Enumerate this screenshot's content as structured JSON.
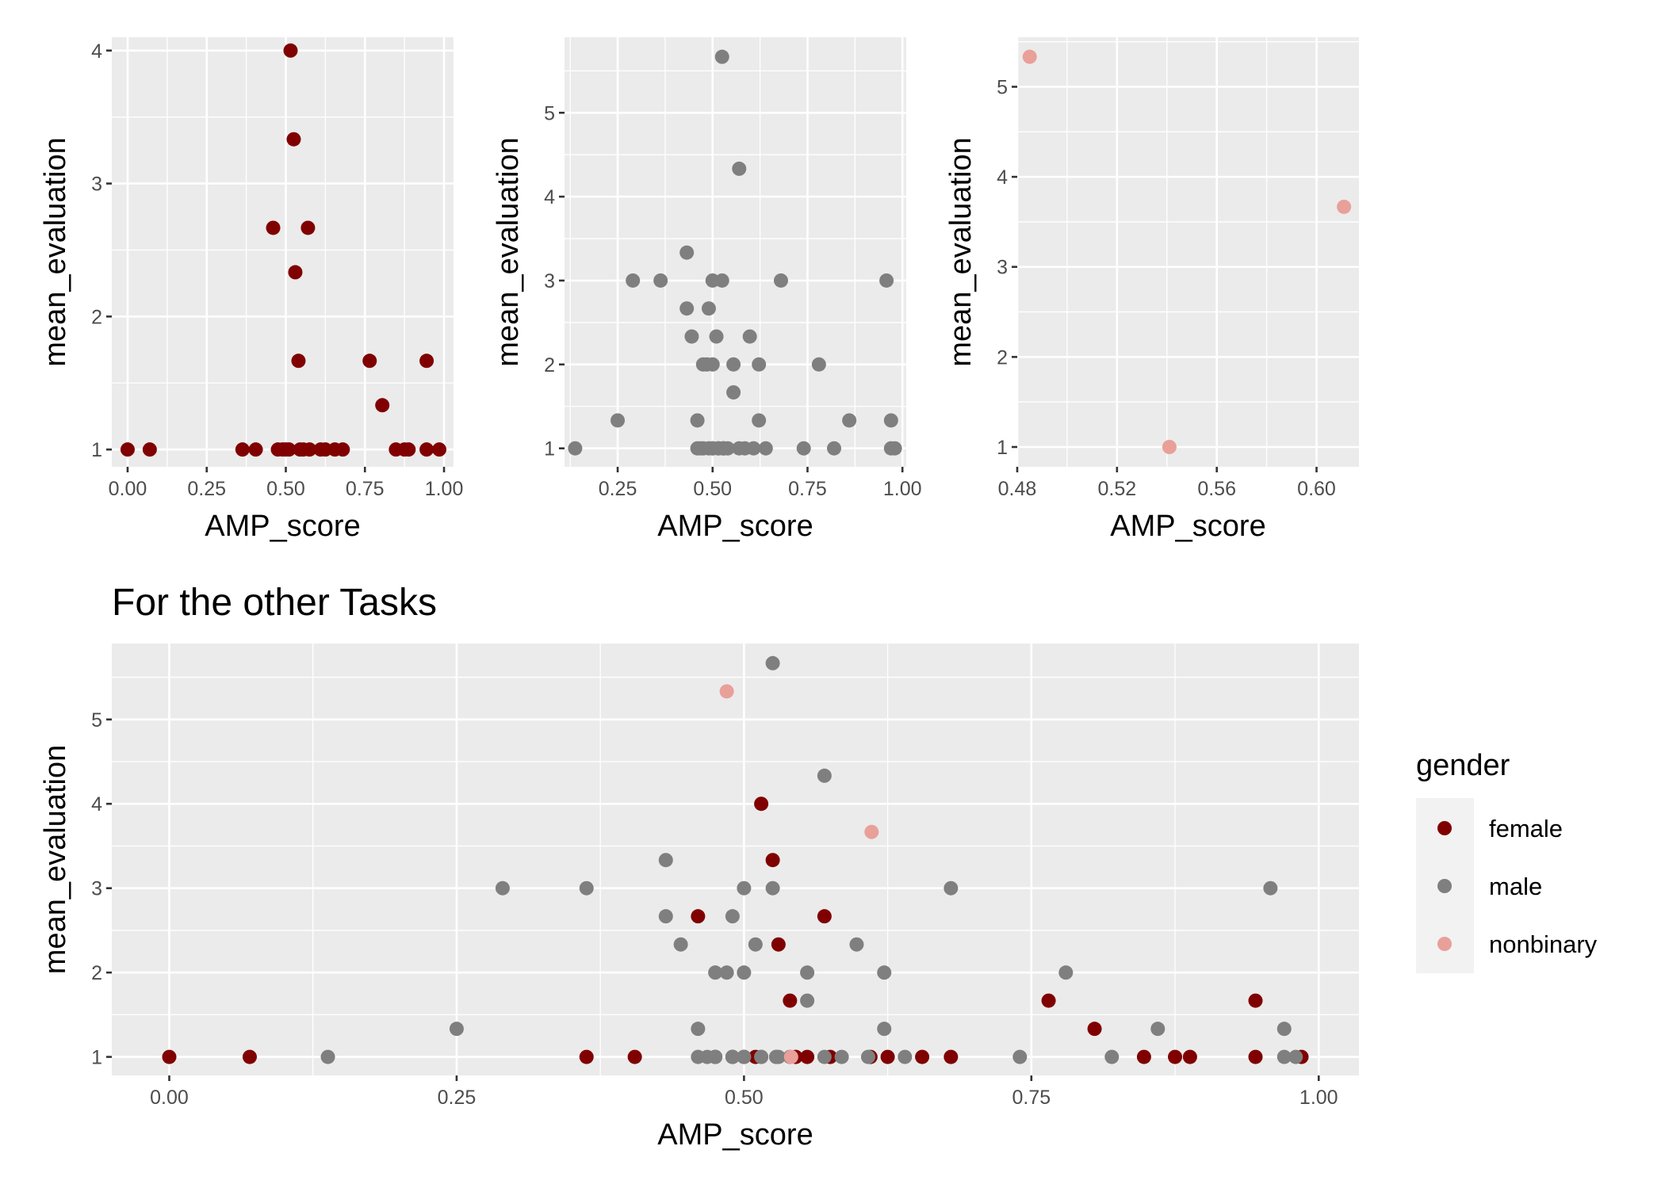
{
  "colors": {
    "panel_bg": "#EBEBEB",
    "grid": "#FFFFFF",
    "female": "#800000",
    "male": "#7F7F7F",
    "nonbinary": "#E8A099"
  },
  "legend": {
    "title": "gender",
    "items": [
      {
        "key": "female",
        "label": "female"
      },
      {
        "key": "male",
        "label": "male"
      },
      {
        "key": "nonbinary",
        "label": "nonbinary"
      }
    ]
  },
  "chart_data": [
    {
      "type": "scatter",
      "title": "",
      "xlabel": "AMP_score",
      "ylabel": "mean_evaluation",
      "xlim": [
        -0.05,
        1.03
      ],
      "ylim": [
        0.87,
        4.1
      ],
      "xticks": [
        0,
        0.25,
        0.5,
        0.75,
        1.0
      ],
      "xtick_labels": [
        "0.00",
        "0.25",
        "0.50",
        "0.75",
        "1.00"
      ],
      "yticks": [
        1,
        2,
        3,
        4
      ],
      "ytick_labels": [
        "1",
        "2",
        "3",
        "4"
      ],
      "grid": true,
      "series": [
        {
          "group": "female",
          "x": [
            0.0,
            0.07,
            0.363,
            0.405,
            0.46,
            0.475,
            0.49,
            0.5,
            0.51,
            0.515,
            0.525,
            0.53,
            0.54,
            0.545,
            0.555,
            0.57,
            0.575,
            0.61,
            0.625,
            0.655,
            0.68,
            0.765,
            0.805,
            0.848,
            0.875,
            0.888,
            0.945,
            0.945,
            0.985
          ],
          "y": [
            1,
            1,
            1,
            1,
            2.667,
            1,
            1,
            1,
            1,
            4,
            3.333,
            2.333,
            1.667,
            1,
            1,
            2.667,
            1,
            1,
            1,
            1,
            1,
            1.667,
            1.333,
            1,
            1,
            1,
            1.667,
            1,
            1
          ]
        }
      ]
    },
    {
      "type": "scatter",
      "title": "",
      "xlabel": "AMP_score",
      "ylabel": "mean_evaluation",
      "xlim": [
        0.11,
        1.01
      ],
      "ylim": [
        0.78,
        5.9
      ],
      "xticks": [
        0.25,
        0.5,
        0.75,
        1.0
      ],
      "xtick_labels": [
        "0.25",
        "0.50",
        "0.75",
        "1.00"
      ],
      "yticks": [
        1,
        2,
        3,
        4,
        5
      ],
      "ytick_labels": [
        "1",
        "2",
        "3",
        "4",
        "5"
      ],
      "grid": true,
      "series": [
        {
          "group": "male",
          "x": [
            0.138,
            0.25,
            0.29,
            0.363,
            0.432,
            0.432,
            0.445,
            0.46,
            0.46,
            0.468,
            0.475,
            0.475,
            0.485,
            0.49,
            0.49,
            0.5,
            0.5,
            0.5,
            0.5,
            0.51,
            0.515,
            0.515,
            0.525,
            0.525,
            0.528,
            0.528,
            0.53,
            0.54,
            0.555,
            0.555,
            0.57,
            0.57,
            0.585,
            0.598,
            0.608,
            0.622,
            0.622,
            0.64,
            0.68,
            0.74,
            0.78,
            0.82,
            0.86,
            0.958,
            0.97,
            0.97,
            0.98
          ],
          "y": [
            1,
            1.333,
            3,
            3,
            3.333,
            2.667,
            2.333,
            1.333,
            1,
            1,
            2,
            1,
            2,
            2.667,
            1,
            3,
            2,
            1,
            1,
            2.333,
            1,
            1,
            5.667,
            3,
            1,
            1,
            1,
            1,
            2,
            1.667,
            4.333,
            1,
            1,
            2.333,
            1,
            2,
            1.333,
            1,
            3,
            1,
            2,
            1,
            1.333,
            3,
            1.333,
            1,
            1
          ]
        }
      ]
    },
    {
      "type": "scatter",
      "title": "",
      "xlabel": "AMP_score",
      "ylabel": "mean_evaluation",
      "xlim": [
        0.48,
        0.617
      ],
      "ylim": [
        0.78,
        5.55
      ],
      "xticks": [
        0.48,
        0.52,
        0.56,
        0.6
      ],
      "xtick_labels": [
        "0.48",
        "0.52",
        "0.56",
        "0.60"
      ],
      "yticks": [
        1,
        2,
        3,
        4,
        5
      ],
      "ytick_labels": [
        "1",
        "2",
        "3",
        "4",
        "5"
      ],
      "grid": true,
      "series": [
        {
          "group": "nonbinary",
          "x": [
            0.485,
            0.541,
            0.611
          ],
          "y": [
            5.333,
            1,
            3.667
          ]
        }
      ]
    },
    {
      "type": "scatter",
      "title": "For the other Tasks",
      "xlabel": "AMP_score",
      "ylabel": "mean_evaluation",
      "xlim": [
        -0.05,
        1.035
      ],
      "ylim": [
        0.78,
        5.9
      ],
      "xticks": [
        0,
        0.25,
        0.5,
        0.75,
        1.0
      ],
      "xtick_labels": [
        "0.00",
        "0.25",
        "0.50",
        "0.75",
        "1.00"
      ],
      "yticks": [
        1,
        2,
        3,
        4,
        5
      ],
      "ytick_labels": [
        "1",
        "2",
        "3",
        "4",
        "5"
      ],
      "grid": true,
      "series": [
        {
          "group": "female",
          "x": [
            0.0,
            0.07,
            0.363,
            0.405,
            0.46,
            0.475,
            0.49,
            0.5,
            0.51,
            0.515,
            0.525,
            0.53,
            0.54,
            0.545,
            0.555,
            0.57,
            0.575,
            0.61,
            0.625,
            0.655,
            0.68,
            0.765,
            0.805,
            0.848,
            0.875,
            0.888,
            0.945,
            0.945,
            0.985
          ],
          "y": [
            1,
            1,
            1,
            1,
            2.667,
            1,
            1,
            1,
            1,
            4,
            3.333,
            2.333,
            1.667,
            1,
            1,
            2.667,
            1,
            1,
            1,
            1,
            1,
            1.667,
            1.333,
            1,
            1,
            1,
            1.667,
            1,
            1
          ]
        },
        {
          "group": "male",
          "x": [
            0.138,
            0.25,
            0.29,
            0.363,
            0.432,
            0.432,
            0.445,
            0.46,
            0.46,
            0.468,
            0.475,
            0.475,
            0.485,
            0.49,
            0.49,
            0.5,
            0.5,
            0.5,
            0.5,
            0.51,
            0.515,
            0.515,
            0.525,
            0.525,
            0.528,
            0.528,
            0.53,
            0.54,
            0.555,
            0.555,
            0.57,
            0.57,
            0.585,
            0.598,
            0.608,
            0.622,
            0.622,
            0.64,
            0.68,
            0.74,
            0.78,
            0.82,
            0.86,
            0.958,
            0.97,
            0.97,
            0.98
          ],
          "y": [
            1,
            1.333,
            3,
            3,
            3.333,
            2.667,
            2.333,
            1.333,
            1,
            1,
            2,
            1,
            2,
            2.667,
            1,
            3,
            2,
            1,
            1,
            2.333,
            1,
            1,
            5.667,
            3,
            1,
            1,
            1,
            1,
            2,
            1.667,
            4.333,
            1,
            1,
            2.333,
            1,
            2,
            1.333,
            1,
            3,
            1,
            2,
            1,
            1.333,
            3,
            1.333,
            1,
            1
          ]
        },
        {
          "group": "nonbinary",
          "x": [
            0.485,
            0.541,
            0.611
          ],
          "y": [
            5.333,
            1,
            3.667
          ]
        }
      ]
    }
  ]
}
